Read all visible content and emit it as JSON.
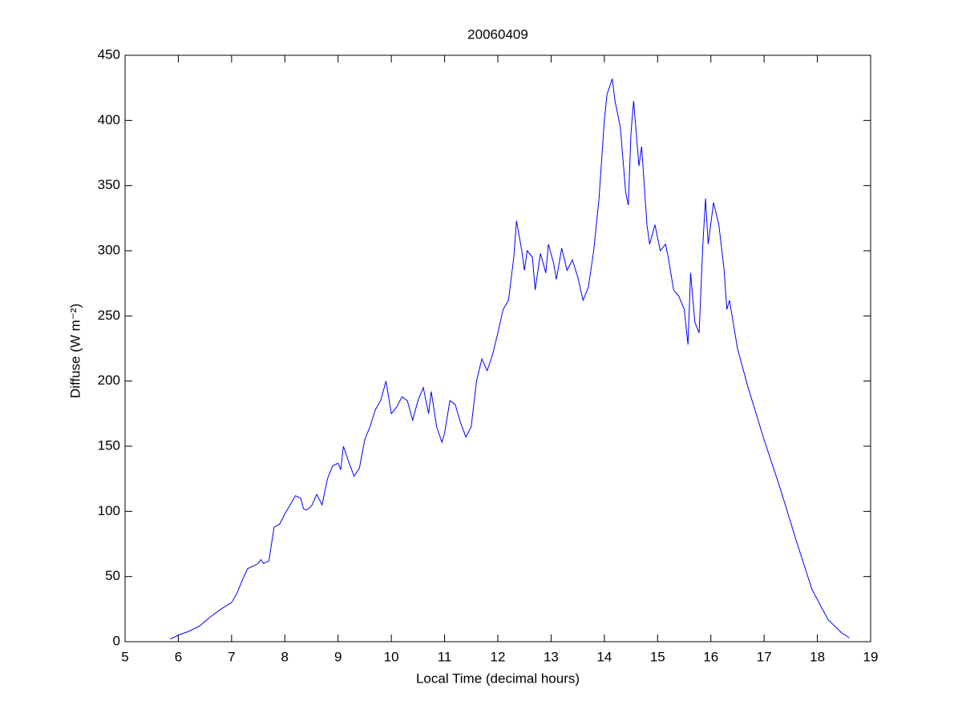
{
  "chart_data": {
    "type": "line",
    "title": "20060409",
    "xlabel": "Local Time (decimal hours)",
    "ylabel": "Diffuse (W m⁻²)",
    "xlim": [
      5,
      19
    ],
    "ylim": [
      0,
      450
    ],
    "xticks": [
      5,
      6,
      7,
      8,
      9,
      10,
      11,
      12,
      13,
      14,
      15,
      16,
      17,
      18,
      19
    ],
    "yticks": [
      0,
      50,
      100,
      150,
      200,
      250,
      300,
      350,
      400,
      450
    ],
    "grid": false,
    "series": [
      {
        "color": "#0000ff",
        "x": [
          5.85,
          6.0,
          6.2,
          6.4,
          6.6,
          6.8,
          7.0,
          7.1,
          7.2,
          7.3,
          7.4,
          7.5,
          7.55,
          7.6,
          7.7,
          7.8,
          7.9,
          8.0,
          8.1,
          8.2,
          8.3,
          8.35,
          8.4,
          8.5,
          8.6,
          8.7,
          8.8,
          8.9,
          9.0,
          9.05,
          9.1,
          9.2,
          9.3,
          9.4,
          9.5,
          9.6,
          9.7,
          9.8,
          9.9,
          10.0,
          10.1,
          10.2,
          10.3,
          10.4,
          10.5,
          10.6,
          10.7,
          10.75,
          10.85,
          10.95,
          11.0,
          11.1,
          11.2,
          11.3,
          11.4,
          11.5,
          11.6,
          11.7,
          11.8,
          11.9,
          12.0,
          12.1,
          12.2,
          12.3,
          12.35,
          12.45,
          12.5,
          12.55,
          12.65,
          12.7,
          12.8,
          12.9,
          12.95,
          13.05,
          13.1,
          13.2,
          13.3,
          13.4,
          13.5,
          13.6,
          13.7,
          13.8,
          13.9,
          14.0,
          14.05,
          14.15,
          14.2,
          14.3,
          14.4,
          14.45,
          14.5,
          14.55,
          14.65,
          14.7,
          14.8,
          14.85,
          14.95,
          15.05,
          15.15,
          15.2,
          15.3,
          15.4,
          15.5,
          15.57,
          15.62,
          15.7,
          15.78,
          15.85,
          15.9,
          15.95,
          16.05,
          16.15,
          16.25,
          16.3,
          16.35,
          16.5,
          16.7,
          17.0,
          17.3,
          17.6,
          17.9,
          18.2,
          18.45,
          18.6
        ],
        "values": [
          2,
          5,
          8,
          12,
          19,
          25,
          30,
          37,
          47,
          56,
          58,
          60,
          63,
          60,
          62,
          88,
          90,
          98,
          105,
          112,
          110,
          102,
          101,
          104,
          113,
          105,
          125,
          135,
          137,
          132,
          150,
          138,
          127,
          133,
          155,
          165,
          178,
          185,
          200,
          175,
          180,
          188,
          185,
          170,
          185,
          195,
          175,
          192,
          165,
          153,
          160,
          185,
          182,
          168,
          157,
          165,
          200,
          217,
          208,
          220,
          237,
          255,
          262,
          295,
          323,
          300,
          285,
          300,
          295,
          270,
          298,
          283,
          305,
          290,
          278,
          302,
          285,
          293,
          280,
          262,
          272,
          300,
          340,
          400,
          420,
          432,
          415,
          395,
          345,
          335,
          390,
          415,
          365,
          380,
          320,
          305,
          320,
          300,
          305,
          295,
          270,
          265,
          255,
          228,
          283,
          245,
          237,
          305,
          340,
          305,
          337,
          320,
          285,
          255,
          262,
          225,
          195,
          155,
          118,
          78,
          40,
          17,
          7,
          3
        ]
      }
    ]
  }
}
